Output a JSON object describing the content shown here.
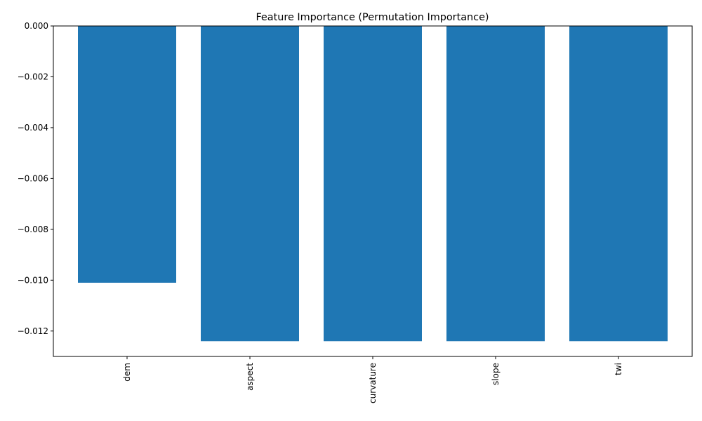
{
  "chart_data": {
    "type": "bar",
    "title": "Feature Importance (Permutation Importance)",
    "xlabel": "",
    "ylabel": "",
    "categories": [
      "dem",
      "aspect",
      "curvature",
      "slope",
      "twi"
    ],
    "values": [
      -0.0101,
      -0.0124,
      -0.0124,
      -0.0124,
      -0.0124
    ],
    "ylim": [
      -0.013,
      0.0
    ],
    "yticks": [
      0.0,
      -0.002,
      -0.004,
      -0.006,
      -0.008,
      -0.01,
      -0.012
    ],
    "ytick_labels": [
      "0.000",
      "−0.002",
      "−0.004",
      "−0.006",
      "−0.008",
      "−0.010",
      "−0.012"
    ],
    "xtick_rotation": 90,
    "grid": false,
    "legend": false,
    "bar_color": "#1f77b4"
  }
}
